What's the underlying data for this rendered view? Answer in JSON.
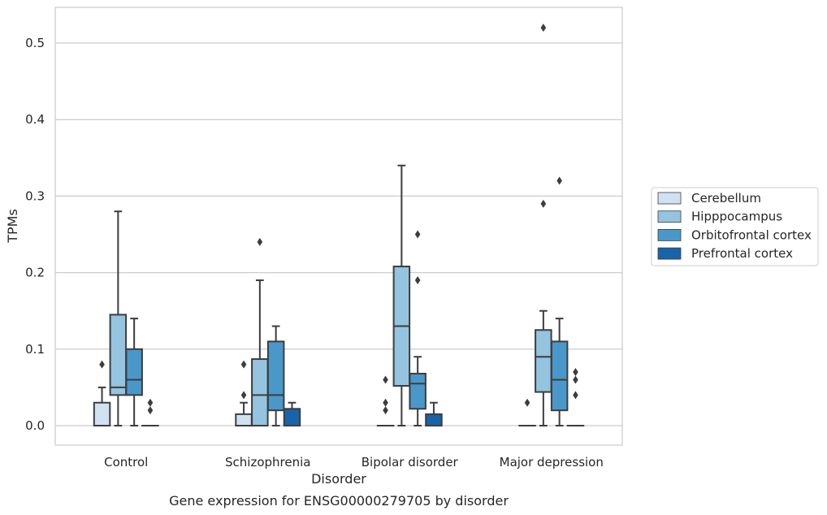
{
  "chart_data": {
    "type": "boxplot",
    "caption": "Gene expression for ENSG00000279705 by disorder",
    "xlabel": "Disorder",
    "ylabel": "TPMs",
    "ylim": [
      -0.025,
      0.548
    ],
    "yticks": [
      0.0,
      0.1,
      0.2,
      0.3,
      0.4,
      0.5
    ],
    "ytick_labels": [
      "0.0",
      "0.1",
      "0.2",
      "0.3",
      "0.4",
      "0.5"
    ],
    "grid": "horizontal",
    "legend_position": "right",
    "categories": [
      "Control",
      "Schizophrenia",
      "Bipolar disorder",
      "Major depression"
    ],
    "series": [
      {
        "name": "Cerebellum",
        "color": "#d0e1f2",
        "boxes": [
          {
            "q1": 0.0,
            "median": 0.0,
            "q3": 0.03,
            "whisker_low": 0.0,
            "whisker_high": 0.05,
            "outliers": [
              0.08
            ]
          },
          {
            "q1": 0.0,
            "median": 0.0,
            "q3": 0.015,
            "whisker_low": 0.0,
            "whisker_high": 0.03,
            "outliers": [
              0.04,
              0.08
            ]
          },
          {
            "q1": 0.0,
            "median": 0.0,
            "q3": 0.0,
            "whisker_low": 0.0,
            "whisker_high": 0.0,
            "outliers": [
              0.02,
              0.03,
              0.06
            ]
          },
          {
            "q1": 0.0,
            "median": 0.0,
            "q3": 0.0,
            "whisker_low": 0.0,
            "whisker_high": 0.0,
            "outliers": [
              0.03
            ]
          }
        ]
      },
      {
        "name": "Hipppocampus",
        "color": "#94c4df",
        "boxes": [
          {
            "q1": 0.04,
            "median": 0.05,
            "q3": 0.145,
            "whisker_low": 0.0,
            "whisker_high": 0.28,
            "outliers": []
          },
          {
            "q1": 0.0,
            "median": 0.04,
            "q3": 0.087,
            "whisker_low": 0.0,
            "whisker_high": 0.19,
            "outliers": [
              0.24
            ]
          },
          {
            "q1": 0.052,
            "median": 0.13,
            "q3": 0.208,
            "whisker_low": 0.0,
            "whisker_high": 0.34,
            "outliers": []
          },
          {
            "q1": 0.044,
            "median": 0.09,
            "q3": 0.125,
            "whisker_low": 0.0,
            "whisker_high": 0.15,
            "outliers": [
              0.29,
              0.52
            ]
          }
        ]
      },
      {
        "name": "Orbitofrontal cortex",
        "color": "#4a98c9",
        "boxes": [
          {
            "q1": 0.04,
            "median": 0.06,
            "q3": 0.1,
            "whisker_low": 0.0,
            "whisker_high": 0.14,
            "outliers": []
          },
          {
            "q1": 0.02,
            "median": 0.04,
            "q3": 0.11,
            "whisker_low": 0.0,
            "whisker_high": 0.13,
            "outliers": []
          },
          {
            "q1": 0.022,
            "median": 0.055,
            "q3": 0.068,
            "whisker_low": 0.0,
            "whisker_high": 0.09,
            "outliers": [
              0.19,
              0.25
            ]
          },
          {
            "q1": 0.02,
            "median": 0.06,
            "q3": 0.11,
            "whisker_low": 0.0,
            "whisker_high": 0.14,
            "outliers": [
              0.32
            ]
          }
        ]
      },
      {
        "name": "Prefrontal cortex",
        "color": "#1764ab",
        "boxes": [
          {
            "q1": 0.0,
            "median": 0.0,
            "q3": 0.0,
            "whisker_low": 0.0,
            "whisker_high": 0.0,
            "outliers": [
              0.02,
              0.03
            ]
          },
          {
            "q1": 0.0,
            "median": 0.0,
            "q3": 0.022,
            "whisker_low": 0.0,
            "whisker_high": 0.03,
            "outliers": []
          },
          {
            "q1": 0.0,
            "median": 0.0,
            "q3": 0.015,
            "whisker_low": 0.0,
            "whisker_high": 0.03,
            "outliers": []
          },
          {
            "q1": 0.0,
            "median": 0.0,
            "q3": 0.0,
            "whisker_low": 0.0,
            "whisker_high": 0.0,
            "outliers": [
              0.04,
              0.06,
              0.07
            ]
          }
        ]
      }
    ]
  }
}
